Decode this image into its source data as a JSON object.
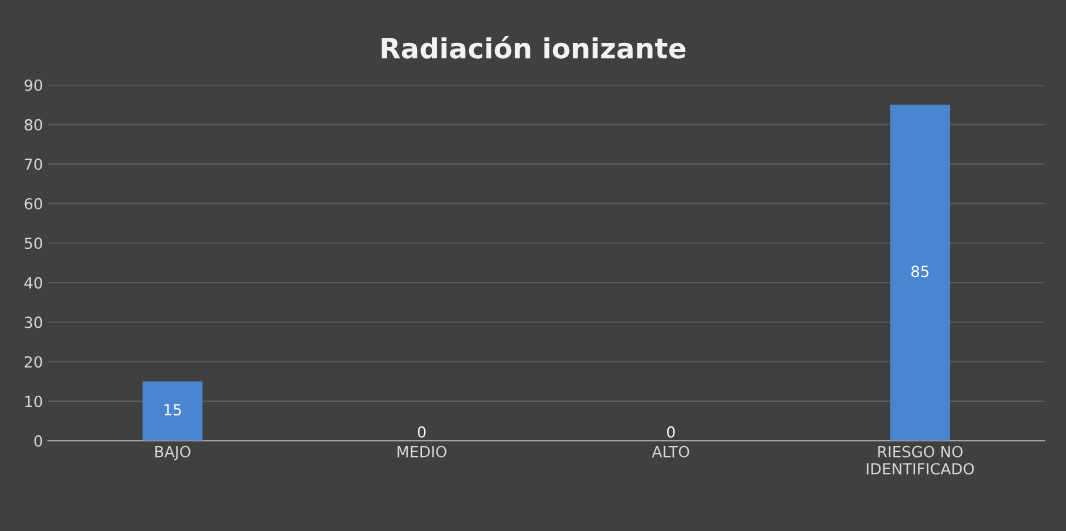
{
  "chart_data": {
    "type": "bar",
    "title": "Radiación ionizante",
    "categories": [
      "BAJO",
      "MEDIO",
      "ALTO",
      "RIESGO NO\nIDENTIFICADO"
    ],
    "values": [
      15,
      0,
      0,
      85
    ],
    "color": "#4a86cf",
    "ylim": [
      0,
      90
    ],
    "yticks": [
      0,
      10,
      20,
      30,
      40,
      50,
      60,
      70,
      80,
      90
    ],
    "grid": "y",
    "data_labels": true
  }
}
